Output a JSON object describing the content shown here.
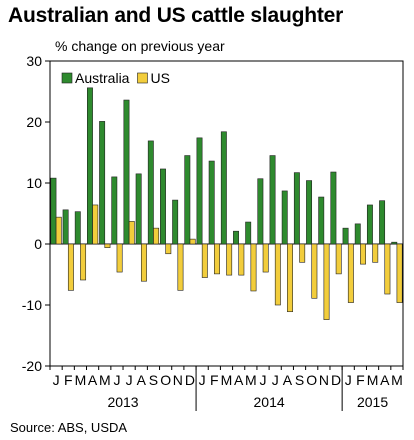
{
  "title": "Australian and US cattle slaughter",
  "subtitle": "% change on previous year",
  "source": "Source: ABS, USDA",
  "colors": {
    "australia": "#2e8a2e",
    "us": "#f2cd3c",
    "outline": "#222222"
  },
  "chart_data": {
    "type": "bar",
    "ylim": [
      -20,
      30
    ],
    "yticks": [
      30,
      20,
      10,
      0,
      -10,
      -20
    ],
    "month_labels": [
      "J",
      "F",
      "M",
      "A",
      "M",
      "J",
      "J",
      "A",
      "S",
      "O",
      "N",
      "D",
      "J",
      "F",
      "M",
      "A",
      "M",
      "J",
      "J",
      "A",
      "S",
      "O",
      "N",
      "D",
      "J",
      "F",
      "M",
      "A",
      "M"
    ],
    "years": [
      {
        "label": "2013",
        "start": 0,
        "count": 12
      },
      {
        "label": "2014",
        "start": 12,
        "count": 12
      },
      {
        "label": "2015",
        "start": 24,
        "count": 5
      }
    ],
    "legend": {
      "placement": "top-left"
    },
    "series": [
      {
        "name": "Australia",
        "values": [
          10.8,
          5.6,
          5.3,
          25.6,
          20.1,
          11.0,
          23.6,
          11.5,
          16.9,
          12.3,
          7.2,
          14.5,
          17.4,
          13.6,
          18.4,
          2.1,
          3.6,
          10.7,
          14.5,
          8.7,
          11.7,
          10.4,
          7.7,
          11.8,
          2.6,
          3.3,
          6.4,
          7.1,
          0.3
        ]
      },
      {
        "name": "US",
        "values": [
          4.4,
          -7.6,
          -5.9,
          6.4,
          -0.6,
          -4.6,
          3.7,
          -6.1,
          2.6,
          -1.6,
          -7.6,
          0.8,
          -5.5,
          -4.9,
          -5.1,
          -5.1,
          -7.7,
          -4.6,
          -10.0,
          -11.1,
          -3.0,
          -8.9,
          -12.4,
          -4.9,
          -9.6,
          -3.3,
          -3.0,
          -8.2,
          -9.6
        ]
      }
    ]
  }
}
